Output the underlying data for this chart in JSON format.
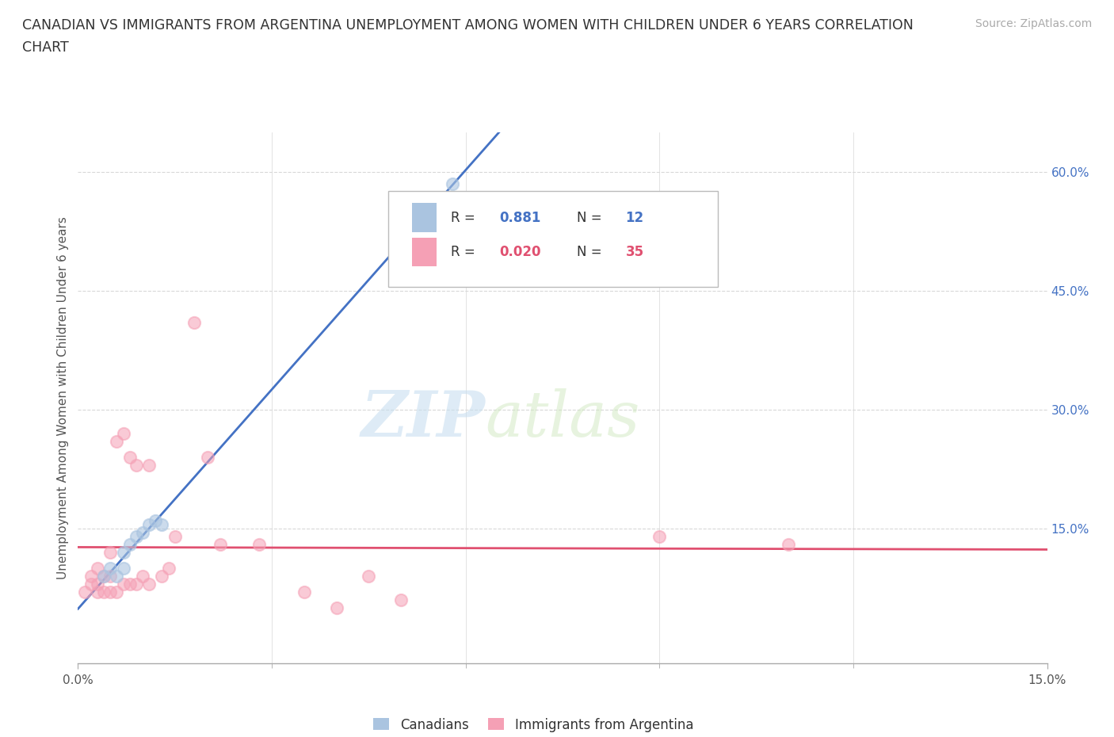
{
  "title_line1": "CANADIAN VS IMMIGRANTS FROM ARGENTINA UNEMPLOYMENT AMONG WOMEN WITH CHILDREN UNDER 6 YEARS CORRELATION",
  "title_line2": "CHART",
  "source_text": "Source: ZipAtlas.com",
  "ylabel": "Unemployment Among Women with Children Under 6 years",
  "xlim": [
    0.0,
    0.15
  ],
  "ylim": [
    -0.02,
    0.65
  ],
  "xtick_major_vals": [
    0.0,
    0.15
  ],
  "xtick_major_labels": [
    "0.0%",
    "15.0%"
  ],
  "xtick_minor_vals": [
    0.03,
    0.06,
    0.09,
    0.12
  ],
  "ytick_vals": [
    0.0,
    0.15,
    0.3,
    0.45,
    0.6
  ],
  "ytick_labels": [
    "",
    "15.0%",
    "30.0%",
    "45.0%",
    "60.0%"
  ],
  "canadians_x": [
    0.004,
    0.005,
    0.006,
    0.007,
    0.007,
    0.008,
    0.009,
    0.01,
    0.011,
    0.012,
    0.013,
    0.058
  ],
  "canadians_y": [
    0.09,
    0.1,
    0.09,
    0.1,
    0.12,
    0.13,
    0.14,
    0.145,
    0.155,
    0.16,
    0.155,
    0.585
  ],
  "argentina_x": [
    0.001,
    0.002,
    0.002,
    0.003,
    0.003,
    0.003,
    0.004,
    0.004,
    0.005,
    0.005,
    0.005,
    0.006,
    0.006,
    0.007,
    0.007,
    0.008,
    0.008,
    0.009,
    0.009,
    0.01,
    0.011,
    0.011,
    0.013,
    0.014,
    0.015,
    0.018,
    0.02,
    0.022,
    0.028,
    0.035,
    0.04,
    0.045,
    0.05,
    0.09,
    0.11
  ],
  "argentina_y": [
    0.07,
    0.08,
    0.09,
    0.07,
    0.08,
    0.1,
    0.07,
    0.09,
    0.07,
    0.09,
    0.12,
    0.07,
    0.26,
    0.08,
    0.27,
    0.08,
    0.24,
    0.08,
    0.23,
    0.09,
    0.08,
    0.23,
    0.09,
    0.1,
    0.14,
    0.41,
    0.24,
    0.13,
    0.13,
    0.07,
    0.05,
    0.09,
    0.06,
    0.14,
    0.13
  ],
  "canadian_color": "#aac4e0",
  "argentina_color": "#f5a0b5",
  "canadian_line_color": "#4472c4",
  "argentina_line_color": "#e05070",
  "R_canadian": 0.881,
  "N_canadian": 12,
  "R_argentina": 0.02,
  "N_argentina": 35,
  "legend_canadian": "Canadians",
  "legend_argentina": "Immigrants from Argentina",
  "watermark_zip": "ZIP",
  "watermark_atlas": "atlas",
  "grid_color": "#d8d8d8",
  "bg_color": "#ffffff",
  "scatter_size": 120,
  "scatter_lw": 1.5
}
